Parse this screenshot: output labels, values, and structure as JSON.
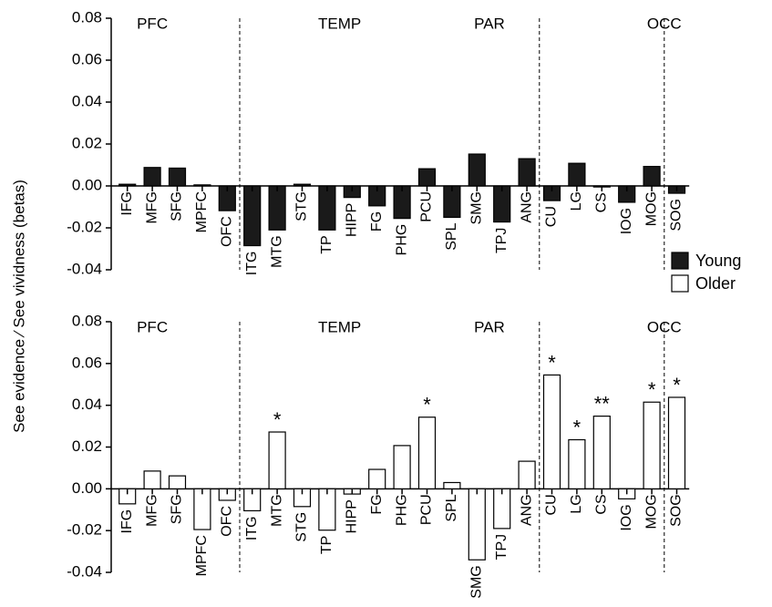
{
  "chart_data": [
    {
      "type": "bar",
      "panel": "top",
      "ylim": [
        -0.04,
        0.08
      ],
      "yticks": [
        "0.08",
        "0.06",
        "0.04",
        "0.02",
        "0.00",
        "-0.02",
        "-0.04"
      ],
      "regions": [
        "PFC",
        "TEMP",
        "PAR",
        "OCC"
      ],
      "categories": [
        "IFG",
        "MFG",
        "SFG",
        "MPFC",
        "OFC",
        "ITG",
        "MTG",
        "STG",
        "TP",
        "HIPP",
        "FG",
        "PHG",
        "PCU",
        "SPL",
        "SMG",
        "TPJ",
        "ANG",
        "CU",
        "LG",
        "CS",
        "IOG",
        "MOG",
        "SOG"
      ],
      "series": [
        {
          "name": "Young",
          "fill": "#1a1a1a",
          "values": [
            0.0008,
            0.0088,
            0.0085,
            0.0005,
            -0.0118,
            -0.0285,
            -0.021,
            0.0008,
            -0.021,
            -0.0055,
            -0.0095,
            -0.0155,
            0.0082,
            -0.015,
            0.0152,
            -0.0172,
            0.013,
            -0.007,
            0.0108,
            -0.0005,
            -0.0078,
            0.0093,
            -0.0035
          ]
        }
      ],
      "significance": [
        "",
        "",
        "",
        "",
        "",
        "",
        "",
        "",
        "",
        "",
        "",
        "",
        "",
        "",
        "",
        "",
        "",
        "",
        "",
        "",
        "",
        "",
        ""
      ]
    },
    {
      "type": "bar",
      "panel": "bottom",
      "ylim": [
        -0.04,
        0.08
      ],
      "yticks": [
        "0.08",
        "0.06",
        "0.04",
        "0.02",
        "0.00",
        "-0.02",
        "-0.04"
      ],
      "regions": [
        "PFC",
        "TEMP",
        "PAR",
        "OCC"
      ],
      "categories": [
        "IFG",
        "MFG",
        "SFG",
        "MPFC",
        "OFC",
        "ITG",
        "MTG",
        "STG",
        "TP",
        "HIPP",
        "FG",
        "PHG",
        "PCU",
        "SPL",
        "SMG",
        "TPJ",
        "ANG",
        "CU",
        "LG",
        "CS",
        "IOG",
        "MOG",
        "SOG"
      ],
      "series": [
        {
          "name": "Older",
          "fill": "#ffffff",
          "values": [
            -0.0072,
            0.0085,
            0.0062,
            -0.0195,
            -0.0055,
            -0.0105,
            0.0272,
            -0.0085,
            -0.0198,
            -0.0025,
            0.0093,
            0.0207,
            0.0343,
            0.003,
            -0.034,
            -0.019,
            0.0132,
            0.0545,
            0.0235,
            0.0348,
            -0.0048,
            0.0415,
            0.0438
          ]
        }
      ],
      "significance": [
        "",
        "",
        "",
        "",
        "",
        "",
        "*",
        "",
        "",
        "",
        "",
        "",
        "*",
        "",
        "",
        "",
        "",
        "*",
        "*",
        "**",
        "",
        "*",
        "*"
      ]
    }
  ],
  "ylabel": "See evidence ∕ See vividness (betas)",
  "legend": {
    "position": "right",
    "items": [
      {
        "label": "Young",
        "fill": "#1a1a1a"
      },
      {
        "label": "Older",
        "fill": "#ffffff"
      }
    ]
  }
}
